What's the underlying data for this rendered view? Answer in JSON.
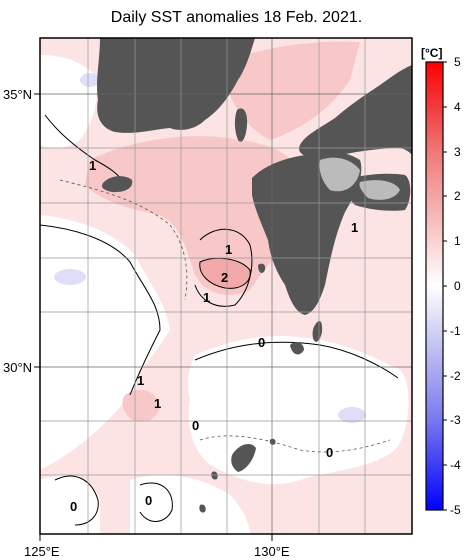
{
  "title": "Daily SST anomalies 18 Feb. 2021.",
  "colorbar": {
    "unit": "[°C]",
    "ticks": [
      "5",
      "4",
      "3",
      "2",
      "1",
      "0",
      "-1",
      "-2",
      "-3",
      "-4",
      "-5"
    ],
    "range": [
      -5,
      5
    ],
    "colors": {
      "-5": "#0000ff",
      "-4": "#3c3cf5",
      "-3": "#7878f0",
      "-2": "#a5a5f0",
      "-1": "#d2d2f5",
      "0": "#ffffff",
      "1": "#fad2d2",
      "2": "#f5a5a5",
      "3": "#f07878",
      "4": "#f03c3c",
      "5": "#ff0000"
    }
  },
  "axes": {
    "x_ticks": [
      "125°E",
      "130°E"
    ],
    "y_ticks": [
      "35°N",
      "30°N"
    ]
  },
  "contour_labels": [
    "1",
    "1",
    "2",
    "1",
    "0",
    "1",
    "1",
    "0",
    "0",
    "0",
    "0",
    "1"
  ],
  "colors": {
    "land": "#555555",
    "warm_light": "#fce4e4",
    "warm_mid": "#f8c8c8",
    "warm_strong": "#f3a9a9",
    "cool_light": "#dedef8",
    "grid": "#999999"
  }
}
